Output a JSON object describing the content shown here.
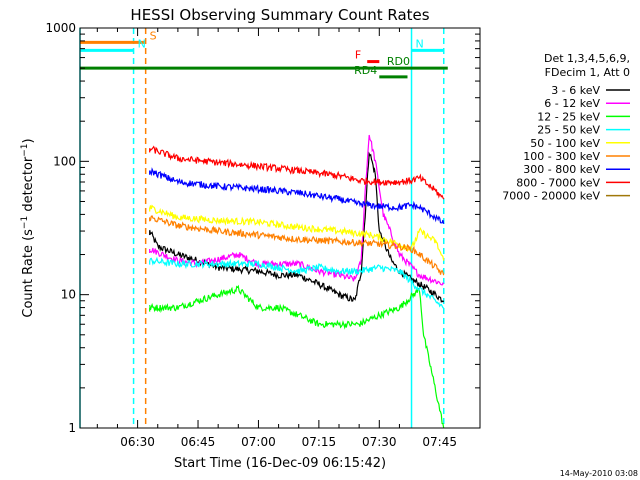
{
  "chart_data": {
    "type": "line",
    "title": "HESSI Observing Summary Count Rates",
    "xlabel": "Start Time (16-Dec-09 06:15:42)",
    "ylabel": "Count Rate (s⁻¹ detector⁻¹)",
    "ylabel_parts": {
      "base": "Count Rate (s",
      "exp1": "−1",
      "mid": " detector",
      "exp2": "−1",
      "end": ")"
    },
    "xlim": [
      "06:15:42",
      "07:55:00"
    ],
    "ylim": [
      1,
      1000
    ],
    "yscale": "log",
    "grid": false,
    "legend_placement": "right",
    "x_ticks": [
      "06:30",
      "06:45",
      "07:00",
      "07:15",
      "07:30",
      "07:45"
    ],
    "y_ticks": [
      "1",
      "10",
      "100",
      "1000"
    ],
    "legend_header": [
      "Det 1,3,4,5,6,9,",
      "FDecim 1, Att 0"
    ],
    "timestamp": "14-May-2010 03:08",
    "series": [
      {
        "name": "3 - 6 keV",
        "color": "#000000",
        "x": [
          "06:33:00",
          "06:35:00",
          "06:40:00",
          "06:45:00",
          "06:50:00",
          "07:00:00",
          "07:05:00",
          "07:10:00",
          "07:15:00",
          "07:20:00",
          "07:24:00",
          "07:25:30",
          "07:26:30",
          "07:27:30",
          "07:29:00",
          "07:30:00",
          "07:33:00",
          "07:35:00",
          "07:38:00",
          "07:40:00",
          "07:42:00",
          "07:44:00",
          "07:46:00"
        ],
        "y": [
          30,
          23,
          20,
          18,
          16,
          15,
          14,
          14,
          12,
          10,
          9,
          15,
          40,
          120,
          80,
          30,
          18,
          15,
          13,
          12,
          11,
          10,
          9
        ]
      },
      {
        "name": "6 - 12 keV",
        "color": "#ff00ff",
        "x": [
          "06:33:00",
          "06:40:00",
          "06:45:00",
          "06:55:00",
          "07:00:00",
          "07:10:00",
          "07:15:00",
          "07:20:00",
          "07:24:00",
          "07:25:30",
          "07:26:30",
          "07:27:30",
          "07:29:00",
          "07:31:00",
          "07:35:00",
          "07:40:00",
          "07:46:00"
        ],
        "y": [
          22,
          18,
          17,
          20,
          17,
          17,
          15,
          14,
          13,
          18,
          60,
          160,
          100,
          40,
          20,
          14,
          12
        ]
      },
      {
        "name": "12 - 25 keV",
        "color": "#00ff00",
        "x": [
          "06:33:00",
          "06:40:00",
          "06:45:00",
          "06:50:00",
          "06:55:00",
          "07:00:00",
          "07:05:00",
          "07:10:00",
          "07:15:00",
          "07:20:00",
          "07:25:00",
          "07:30:00",
          "07:35:00",
          "07:40:00",
          "07:41:00",
          "07:46:00"
        ],
        "y": [
          8,
          8,
          9,
          10,
          11,
          8,
          8,
          7,
          6,
          6,
          6,
          7,
          8,
          11,
          5,
          1
        ]
      },
      {
        "name": "25 - 50 keV",
        "color": "#00ffff",
        "x": [
          "06:33:00",
          "06:40:00",
          "06:50:00",
          "07:00:00",
          "07:10:00",
          "07:15:00",
          "07:20:00",
          "07:25:00",
          "07:30:00",
          "07:35:00",
          "07:40:00",
          "07:46:00"
        ],
        "y": [
          18,
          17,
          17,
          17,
          15,
          16,
          15,
          15,
          16,
          15,
          11,
          8
        ]
      },
      {
        "name": "50 - 100 keV",
        "color": "#ffff00",
        "x": [
          "06:33:00",
          "06:40:00",
          "06:50:00",
          "07:00:00",
          "07:10:00",
          "07:20:00",
          "07:28:00",
          "07:33:00",
          "07:38:00",
          "07:40:00",
          "07:44:00",
          "07:46:00"
        ],
        "y": [
          45,
          38,
          36,
          35,
          32,
          30,
          28,
          25,
          22,
          30,
          25,
          18
        ]
      },
      {
        "name": "100 - 300 keV",
        "color": "#ff8000",
        "x": [
          "06:33:00",
          "06:40:00",
          "06:50:00",
          "07:00:00",
          "07:10:00",
          "07:20:00",
          "07:30:00",
          "07:35:00",
          "07:38:00",
          "07:40:00",
          "07:44:00",
          "07:46:00"
        ],
        "y": [
          38,
          33,
          30,
          28,
          26,
          25,
          24,
          23,
          22,
          20,
          16,
          14
        ]
      },
      {
        "name": "300 - 800 keV",
        "color": "#0000ff",
        "x": [
          "06:33:00",
          "06:40:00",
          "06:50:00",
          "07:00:00",
          "07:10:00",
          "07:20:00",
          "07:25:00",
          "07:30:00",
          "07:35:00",
          "07:38:00",
          "07:40:00",
          "07:44:00",
          "07:46:00"
        ],
        "y": [
          85,
          70,
          65,
          62,
          58,
          52,
          48,
          46,
          45,
          47,
          45,
          38,
          34
        ]
      },
      {
        "name": "800 - 7000 keV",
        "color": "#ff0000",
        "x": [
          "06:33:00",
          "06:40:00",
          "06:50:00",
          "07:00:00",
          "07:10:00",
          "07:20:00",
          "07:25:00",
          "07:30:00",
          "07:35:00",
          "07:38:00",
          "07:40:00",
          "07:44:00",
          "07:46:00"
        ],
        "y": [
          125,
          105,
          98,
          92,
          85,
          78,
          72,
          70,
          70,
          72,
          75,
          60,
          52
        ]
      },
      {
        "name": "7000 - 20000 keV",
        "color": "#a0780a",
        "x": [],
        "y": []
      }
    ],
    "annotations": [
      {
        "label": "S",
        "color": "#ff8000",
        "level": 780,
        "x_range": [
          "06:15:42",
          "06:32:00"
        ]
      },
      {
        "label": "N",
        "color": "#00ffff",
        "level": 680,
        "x_range": [
          "06:15:42",
          "06:29:00"
        ]
      },
      {
        "label": "N",
        "color": "#00ffff",
        "level": 680,
        "x_range": [
          "07:38:00",
          "07:46:00"
        ]
      },
      {
        "label": "F",
        "color": "#ff0000",
        "level": 560,
        "x_range": [
          "07:27:00",
          "07:30:00"
        ]
      },
      {
        "label": "RD0",
        "color": "#008000",
        "level": 500,
        "x_range": [
          "06:15:42",
          "07:47:00"
        ]
      },
      {
        "label": "RD4",
        "color": "#008000",
        "level": 430,
        "x_range": [
          "07:30:00",
          "07:37:00"
        ]
      }
    ],
    "vertical_lines": [
      {
        "x": "06:15:42",
        "color": "#00ffff",
        "style": "solid"
      },
      {
        "x": "06:29:00",
        "color": "#00ffff",
        "style": "dashed"
      },
      {
        "x": "06:32:00",
        "color": "#ff8000",
        "style": "dashed"
      },
      {
        "x": "07:38:00",
        "color": "#00ffff",
        "style": "solid"
      },
      {
        "x": "07:46:00",
        "color": "#00ffff",
        "style": "dashed"
      }
    ]
  }
}
